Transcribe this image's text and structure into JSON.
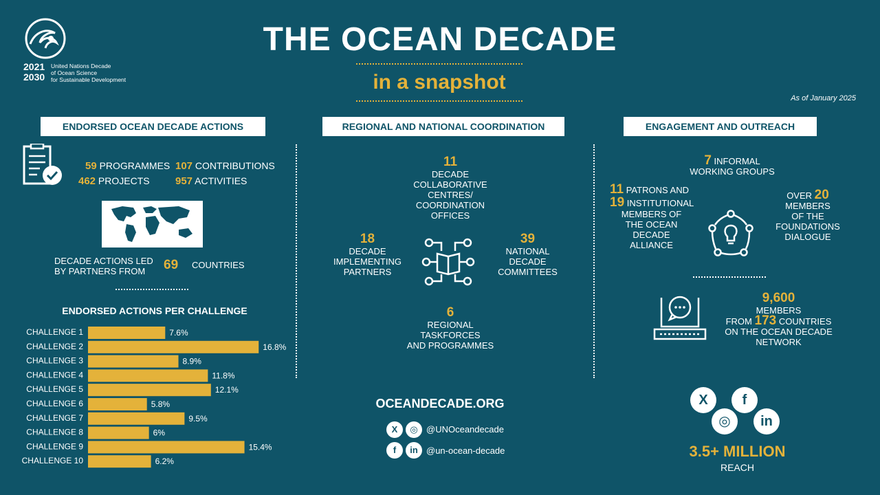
{
  "header": {
    "title": "THE OCEAN DECADE",
    "subtitle": "in a snapshot",
    "as_of": "As of January 2025"
  },
  "logo": {
    "year_start": "2021",
    "year_end": "2030",
    "line1": "United Nations Decade",
    "line2": "of Ocean Science",
    "line3": "for Sustainable Development"
  },
  "sections": {
    "endorsed": "ENDORSED OCEAN DECADE ACTIONS",
    "regional": "REGIONAL AND NATIONAL COORDINATION",
    "engagement": "ENGAGEMENT AND OUTREACH"
  },
  "endorsed": {
    "programmes_num": "59",
    "programmes_label": "PROGRAMMES",
    "contributions_num": "107",
    "contributions_label": "CONTRIBUTIONS",
    "projects_num": "462",
    "projects_label": "PROJECTS",
    "activities_num": "957",
    "activities_label": "ACTIVITIES",
    "countries_text1": "DECADE ACTIONS LED",
    "countries_text2": "BY PARTNERS FROM",
    "countries_num": "69",
    "countries_label": "COUNTRIES",
    "chart_title": "ENDORSED ACTIONS PER CHALLENGE"
  },
  "chart_data": {
    "type": "bar",
    "orientation": "horizontal",
    "title": "ENDORSED ACTIONS PER CHALLENGE",
    "categories": [
      "CHALLENGE 1",
      "CHALLENGE 2",
      "CHALLENGE 3",
      "CHALLENGE 4",
      "CHALLENGE 5",
      "CHALLENGE 6",
      "CHALLENGE 7",
      "CHALLENGE 8",
      "CHALLENGE 9",
      "CHALLENGE 10"
    ],
    "values": [
      7.6,
      16.8,
      8.9,
      11.8,
      12.1,
      5.8,
      9.5,
      6,
      15.4,
      6.2
    ],
    "value_labels": [
      "7.6%",
      "16.8%",
      "8.9%",
      "11.8%",
      "12.1%",
      "5.8%",
      "9.5%",
      "6%",
      "15.4%",
      "6.2%"
    ],
    "bar_color": "#e4b23a",
    "grid": false
  },
  "regional": {
    "centres_num": "11",
    "centres_lines": [
      "DECADE",
      "COLLABORATIVE",
      "CENTRES/",
      "COORDINATION",
      "OFFICES"
    ],
    "partners_num": "18",
    "partners_lines": [
      "DECADE",
      "IMPLEMENTING",
      "PARTNERS"
    ],
    "committees_num": "39",
    "committees_lines": [
      "NATIONAL",
      "DECADE",
      "COMMITTEES"
    ],
    "taskforces_num": "6",
    "taskforces_lines": [
      "REGIONAL",
      "TASKFORCES",
      "AND PROGRAMMES"
    ]
  },
  "engagement": {
    "groups_num": "7",
    "groups_line1": "INFORMAL",
    "groups_line2": "WORKING GROUPS",
    "patrons_num": "11",
    "patrons_label": "PATRONS AND",
    "institutional_num": "19",
    "institutional_label": "INSTITUTIONAL",
    "alliance_lines": [
      "MEMBERS OF",
      "THE OCEAN",
      "DECADE",
      "ALLIANCE"
    ],
    "foundations_prefix": "OVER",
    "foundations_num": "20",
    "foundations_lines": [
      "MEMBERS",
      "OF THE",
      "FOUNDATIONS",
      "DIALOGUE"
    ],
    "network_num": "9,600",
    "network_line1": "MEMBERS",
    "network_from": "FROM",
    "network_countries_num": "173",
    "network_countries_label": "COUNTRIES",
    "network_line3": "ON THE OCEAN DECADE",
    "network_line4": "NETWORK",
    "reach_num": "3.5+ MILLION",
    "reach_label": "REACH"
  },
  "footer": {
    "website": "OCEANDECADE.ORG",
    "handle1": "@UNOceandecade",
    "handle2": "@un-ocean-decade"
  },
  "colors": {
    "background": "#0f5468",
    "accent": "#e4b23a",
    "text": "#ffffff"
  },
  "icons": [
    "x-icon",
    "instagram-icon",
    "facebook-icon",
    "linkedin-icon",
    "checklist-icon",
    "network-book-icon",
    "lightbulb-cycle-icon",
    "laptop-chat-icon",
    "world-map-icon"
  ]
}
